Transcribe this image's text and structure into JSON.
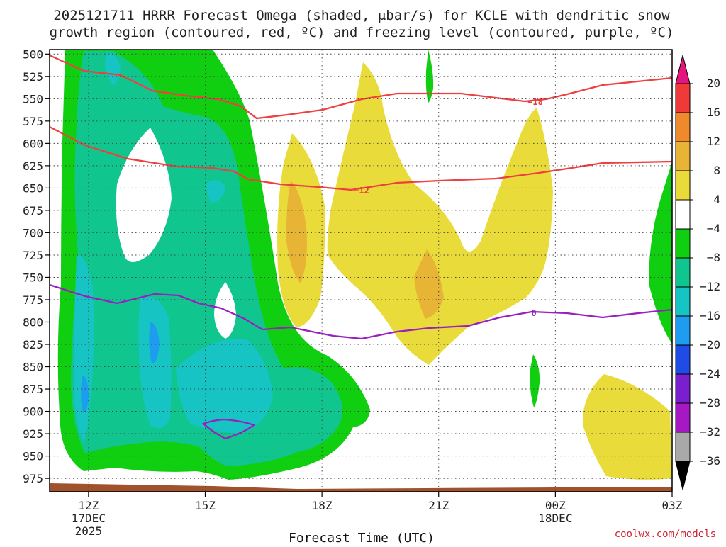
{
  "chart_data": {
    "type": "contour",
    "title_lines": [
      "2025121711 HRRR Forecast Omega (shaded, μbar/s) for KCLE with dendritic snow",
      "growth region (contoured, red, ºC) and freezing level (contoured, purple, ºC)"
    ],
    "xlabel": "Forecast Time (UTC)",
    "credit": "coolwx.com/models",
    "x_range_hours": [
      11,
      27
    ],
    "y_range_hpa": [
      495,
      990
    ],
    "x_ticks": [
      {
        "hour": 12,
        "label": "12Z",
        "sub": [
          "17DEC",
          "2025"
        ]
      },
      {
        "hour": 15,
        "label": "15Z",
        "sub": []
      },
      {
        "hour": 18,
        "label": "18Z",
        "sub": []
      },
      {
        "hour": 21,
        "label": "21Z",
        "sub": []
      },
      {
        "hour": 24,
        "label": "00Z",
        "sub": [
          "18DEC"
        ]
      },
      {
        "hour": 27,
        "label": "03Z",
        "sub": []
      }
    ],
    "y_ticks": [
      "500",
      "525",
      "550",
      "575",
      "600",
      "625",
      "650",
      "675",
      "700",
      "725",
      "750",
      "775",
      "800",
      "825",
      "850",
      "875",
      "900",
      "925",
      "950",
      "975"
    ],
    "colorbar": {
      "levels": [
        "20",
        "16",
        "12",
        "8",
        "4",
        "−4",
        "−8",
        "−12",
        "−16",
        "−20",
        "−24",
        "−28",
        "−32",
        "−36"
      ],
      "colors": [
        "#f03a3a",
        "#ef8a2c",
        "#e8b436",
        "#e9dc3a",
        "#ffffff",
        "#10cf10",
        "#11c58f",
        "#16c4c4",
        "#1e9cf0",
        "#1f4be6",
        "#7a1fd0",
        "#a518c4",
        "#a9a9a9"
      ],
      "top_color": "#e6147e",
      "bottom_color": "#000000"
    },
    "contour_labels": [
      {
        "text": "−18",
        "color": "#e8383a"
      },
      {
        "text": "−12",
        "color": "#e8383a"
      },
      {
        "text": "0",
        "color": "#8a1fb8"
      }
    ],
    "shading_colors": {
      "strong_up": "#11c58f",
      "up": "#10cf10",
      "core_up": "#16c4c4",
      "max_up": "#1e9cf0",
      "down": "#e9dc3a",
      "strong_down": "#e8b436",
      "terrain": "#a0522d"
    }
  }
}
